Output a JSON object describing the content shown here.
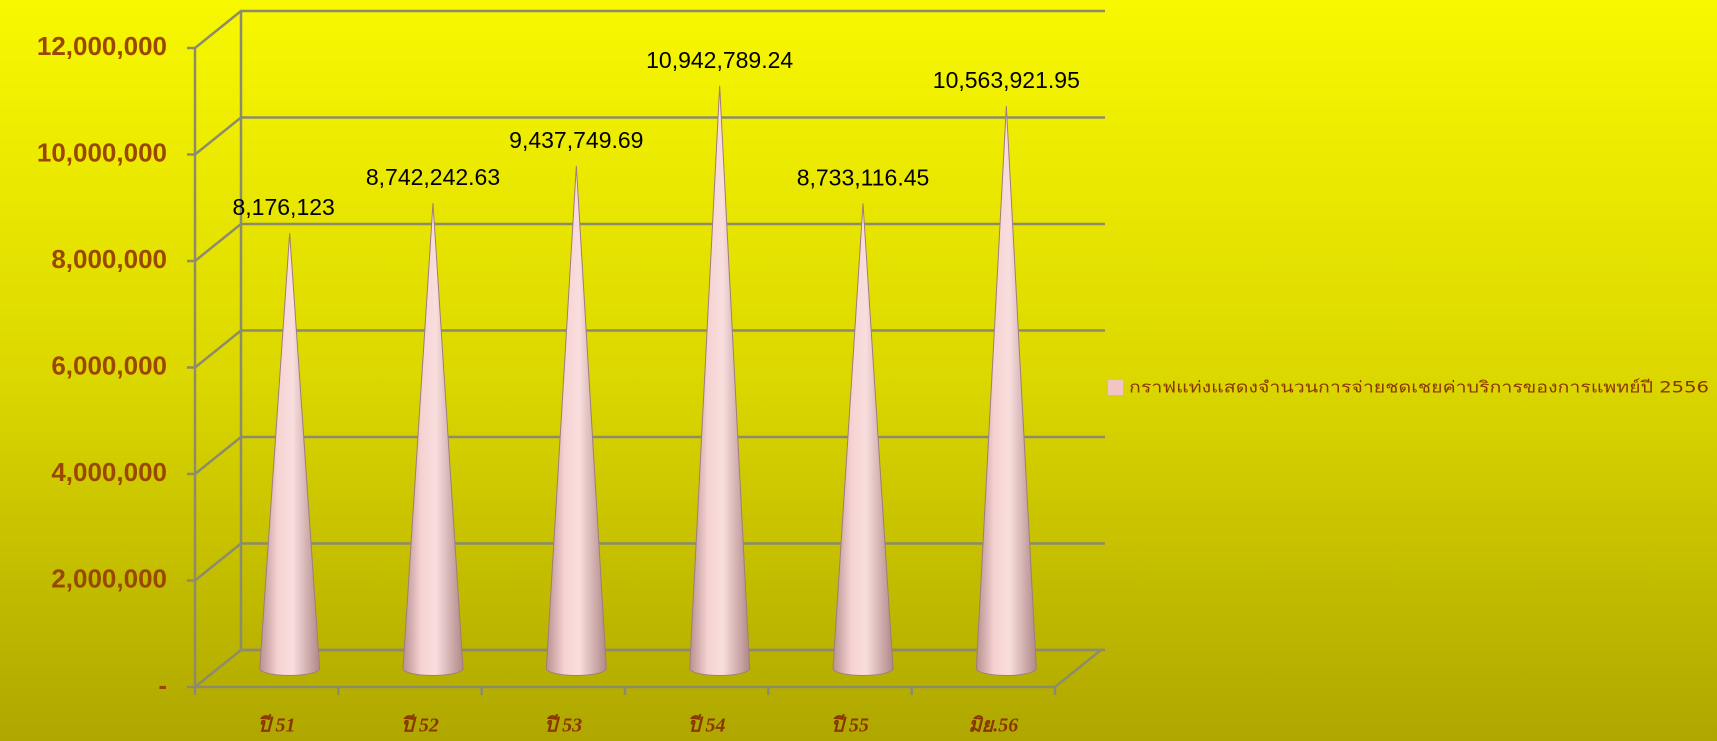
{
  "chart_data": {
    "type": "bar",
    "categories": [
      "ปี 51",
      "ปี 52",
      "ปี 53",
      "ปี 54",
      "ปี 55",
      "มิย.56"
    ],
    "series": [
      {
        "name": "กราฟแท่งแสดงจำนวนการจ่ายชดเชยค่าบริการของการแพทย์ปี  2556",
        "color": "#f2c4c4",
        "values": [
          8176123,
          8742242.63,
          9437749.69,
          10942789.24,
          8733116.45,
          10563921.95
        ],
        "value_labels": [
          "8,176,123",
          "8,742,242.63",
          "9,437,749.69",
          "10,942,789.24",
          "8,733,116.45",
          "10,563,921.95"
        ]
      }
    ],
    "ylim": [
      0,
      12000000
    ],
    "yticks": [
      {
        "value": 0,
        "label": "-"
      },
      {
        "value": 2000000,
        "label": "2,000,000"
      },
      {
        "value": 4000000,
        "label": "4,000,000"
      },
      {
        "value": 6000000,
        "label": "6,000,000"
      },
      {
        "value": 8000000,
        "label": "8,000,000"
      },
      {
        "value": 10000000,
        "label": "10,000,000"
      },
      {
        "value": 12000000,
        "label": "12,000,000"
      }
    ],
    "grid": true,
    "legend": "right"
  }
}
